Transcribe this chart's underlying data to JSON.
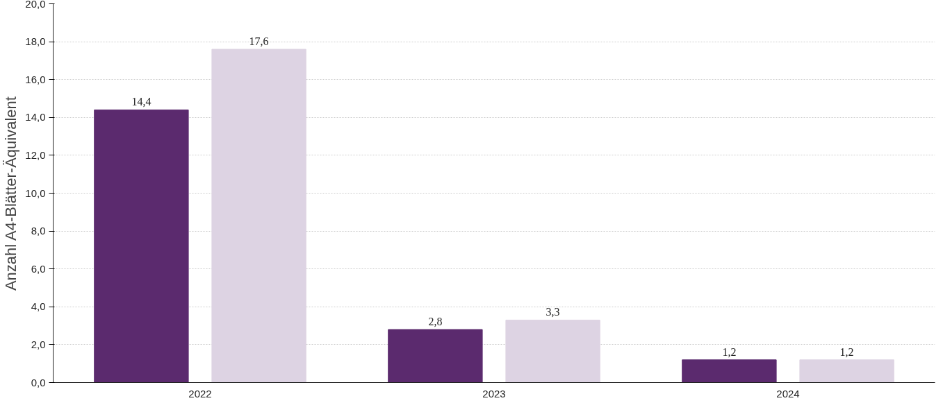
{
  "chart_data": {
    "type": "bar",
    "ylabel": "Anzahl A4-Blätter-Äquivalent",
    "categories": [
      "2022",
      "2023",
      "2024"
    ],
    "series": [
      {
        "color": "#5b2a6e",
        "values": [
          14.4,
          2.8,
          1.2
        ],
        "value_labels": [
          "14,4",
          "2,8",
          "1,2"
        ]
      },
      {
        "color": "#ddd3e3",
        "values": [
          17.6,
          3.3,
          1.2
        ],
        "value_labels": [
          "17,6",
          "3,3",
          "1,2"
        ]
      }
    ],
    "ylim": [
      0,
      20
    ],
    "yticks": [
      {
        "value": 0,
        "label": "0,0"
      },
      {
        "value": 2,
        "label": "2,0"
      },
      {
        "value": 4,
        "label": "4,0"
      },
      {
        "value": 6,
        "label": "6,0"
      },
      {
        "value": 8,
        "label": "8,0"
      },
      {
        "value": 10,
        "label": "10,0"
      },
      {
        "value": 12,
        "label": "12,0"
      },
      {
        "value": 14,
        "label": "14,0"
      },
      {
        "value": 16,
        "label": "16,0"
      },
      {
        "value": 18,
        "label": "18,0"
      },
      {
        "value": 20,
        "label": "20,0"
      }
    ],
    "grid": "y"
  }
}
